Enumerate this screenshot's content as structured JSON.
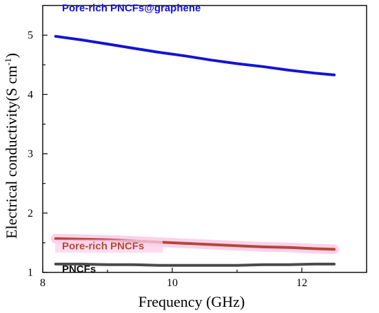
{
  "chart_data": {
    "type": "line",
    "xlabel": "Frequency (GHz)",
    "ylabel": "Electrical conductivity(S cm",
    "ylabel_sup": "-1",
    "ylabel_close": ")",
    "xlim": [
      8,
      13
    ],
    "ylim": [
      1,
      5.5
    ],
    "x_ticks": [
      8,
      10,
      12
    ],
    "y_ticks": [
      1,
      2,
      3,
      4,
      5
    ],
    "x_minor_ticks": [
      9,
      11,
      13
    ],
    "y_minor_ticks": [
      1.5,
      2.5,
      3.5,
      4.5
    ],
    "series": [
      {
        "name": "Pore-rich PNCFs@graphene",
        "color": "#1414d2",
        "x": [
          8.2,
          8.6,
          9.0,
          9.4,
          9.8,
          10.2,
          10.6,
          11.0,
          11.4,
          11.8,
          12.2,
          12.5
        ],
        "y": [
          4.98,
          4.92,
          4.85,
          4.78,
          4.71,
          4.65,
          4.58,
          4.52,
          4.47,
          4.41,
          4.36,
          4.33
        ]
      },
      {
        "name": "Pore-rich PNCFs",
        "color": "#b5473a",
        "highlight": "#fbd2ea",
        "x": [
          8.2,
          8.6,
          9.0,
          9.4,
          9.8,
          10.2,
          10.6,
          11.0,
          11.4,
          11.8,
          12.2,
          12.5
        ],
        "y": [
          1.57,
          1.56,
          1.55,
          1.53,
          1.51,
          1.49,
          1.47,
          1.45,
          1.43,
          1.42,
          1.4,
          1.39
        ]
      },
      {
        "name": "PNCFs",
        "color": "#4a4a4a",
        "label_color": "#111111",
        "x": [
          8.2,
          8.6,
          9.0,
          9.4,
          9.8,
          10.2,
          10.6,
          11.0,
          11.4,
          11.8,
          12.2,
          12.5
        ],
        "y": [
          1.14,
          1.14,
          1.13,
          1.13,
          1.12,
          1.12,
          1.12,
          1.12,
          1.13,
          1.13,
          1.14,
          1.14
        ]
      }
    ]
  }
}
